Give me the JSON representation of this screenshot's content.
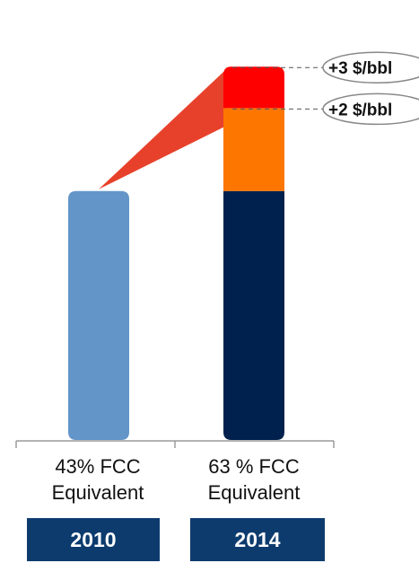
{
  "chart_data": {
    "type": "bar",
    "stacked": true,
    "title": "",
    "xlabel": "",
    "ylabel": "",
    "ylim": [
      0,
      10
    ],
    "grid": false,
    "legend": "none",
    "categories": [
      {
        "label": "43% FCC Equivalent",
        "label_line1": "43% FCC",
        "label_line2": "Equivalent",
        "year": "2010"
      },
      {
        "label": "63 % FCC Equivalent",
        "label_line1": "63 % FCC",
        "label_line2": "Equivalent",
        "year": "2014"
      }
    ],
    "series": [
      {
        "values": [
          6.0,
          6.0
        ],
        "colors": [
          "#6495c9",
          "#00214d"
        ]
      },
      {
        "values": [
          0,
          2.0
        ],
        "colors": [
          "#6495c9",
          "#fc7600"
        ]
      },
      {
        "values": [
          0,
          1.0
        ],
        "colors": [
          "#6495c9",
          "#ff0000"
        ]
      }
    ],
    "annotations": [
      {
        "text": "+3 $/bbl",
        "segment": 2
      },
      {
        "text": "+2 $/bbl",
        "segment": 1
      }
    ],
    "connector_color": "#e8412b"
  }
}
